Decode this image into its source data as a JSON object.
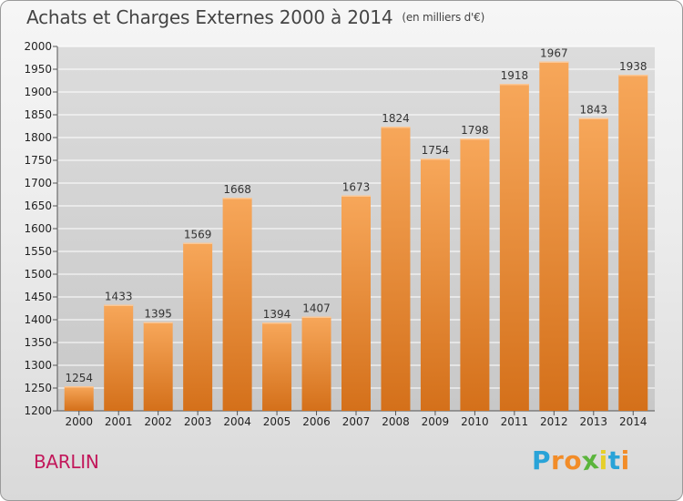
{
  "chart_data": {
    "type": "bar",
    "title": "Achats et Charges Externes 2000 à 2014",
    "subtitle": "(en milliers d'€)",
    "categories": [
      "2000",
      "2001",
      "2002",
      "2003",
      "2004",
      "2005",
      "2006",
      "2007",
      "2008",
      "2009",
      "2010",
      "2011",
      "2012",
      "2013",
      "2014"
    ],
    "values": [
      1254,
      1433,
      1395,
      1569,
      1668,
      1394,
      1407,
      1673,
      1824,
      1754,
      1798,
      1918,
      1967,
      1843,
      1938
    ],
    "ylim": [
      1200,
      2000
    ],
    "yticks": [
      1200,
      1250,
      1300,
      1350,
      1400,
      1450,
      1500,
      1550,
      1600,
      1650,
      1700,
      1750,
      1800,
      1850,
      1900,
      1950,
      2000
    ],
    "xlabel": "",
    "ylabel": "",
    "grid": true,
    "bar_color": "#f0923a",
    "bar_color_dark": "#d9761e"
  },
  "footer": {
    "place": "BARLIN",
    "logo_letters": [
      "P",
      "r",
      "o",
      "x",
      "i",
      "t",
      "i"
    ],
    "logo_colors": [
      "#29a3d8",
      "#f28c28",
      "#f28c28",
      "#5bb53c",
      "#e6cf2a",
      "#29a3d8",
      "#f28c28"
    ]
  }
}
